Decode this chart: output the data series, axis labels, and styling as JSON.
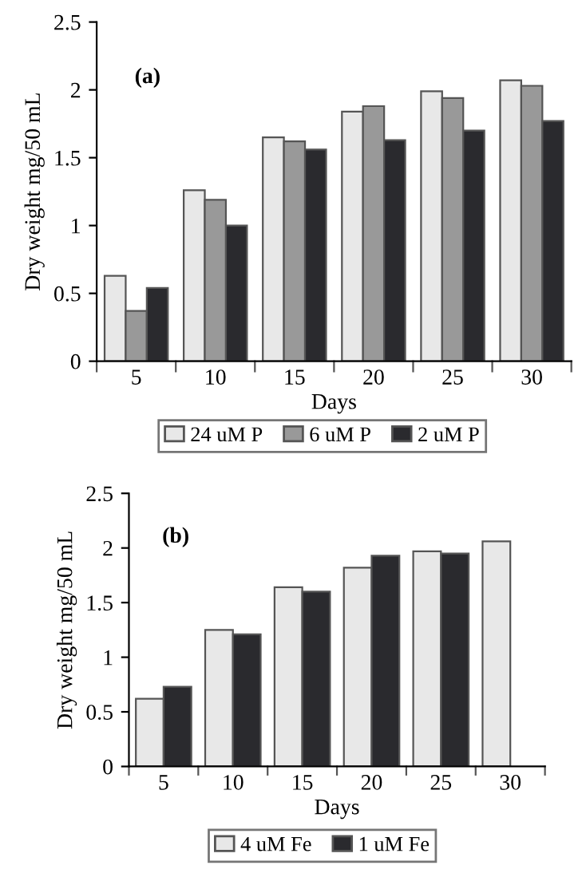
{
  "chart_data": [
    {
      "type": "bar",
      "xlabel": "Days",
      "ylabel": "Dry weight mg/50 mL",
      "annotations": [
        "(a)"
      ],
      "categories": [
        "5",
        "10",
        "15",
        "20",
        "25",
        "30"
      ],
      "ylim": [
        0,
        2.5
      ],
      "yticks": [
        0,
        0.5,
        1,
        1.5,
        2,
        2.5
      ],
      "grid": false,
      "legend": "bottom",
      "series": [
        {
          "name": "24 uM P",
          "color": "#e8e8e8",
          "values": [
            0.63,
            1.26,
            1.65,
            1.84,
            1.99,
            2.07
          ]
        },
        {
          "name": "6 uM P",
          "color": "#999999",
          "values": [
            0.37,
            1.19,
            1.62,
            1.88,
            1.94,
            2.03
          ]
        },
        {
          "name": "2 uM P",
          "color": "#2a2a2e",
          "values": [
            0.54,
            1.0,
            1.56,
            1.63,
            1.7,
            1.77
          ]
        }
      ]
    },
    {
      "type": "bar",
      "xlabel": "Days",
      "ylabel": "Dry weight mg/50 mL",
      "annotations": [
        "(b)"
      ],
      "categories": [
        "5",
        "10",
        "15",
        "20",
        "25",
        "30"
      ],
      "ylim": [
        0,
        2.5
      ],
      "yticks": [
        0,
        0.5,
        1,
        1.5,
        2,
        2.5
      ],
      "grid": false,
      "legend": "bottom",
      "series": [
        {
          "name": "4 uM Fe",
          "color": "#e8e8e8",
          "values": [
            0.62,
            1.25,
            1.64,
            1.82,
            1.97,
            2.06
          ]
        },
        {
          "name": "1 uM Fe",
          "color": "#2a2a2e",
          "values": [
            0.73,
            1.21,
            1.6,
            1.93,
            1.95,
            null
          ]
        }
      ]
    }
  ]
}
